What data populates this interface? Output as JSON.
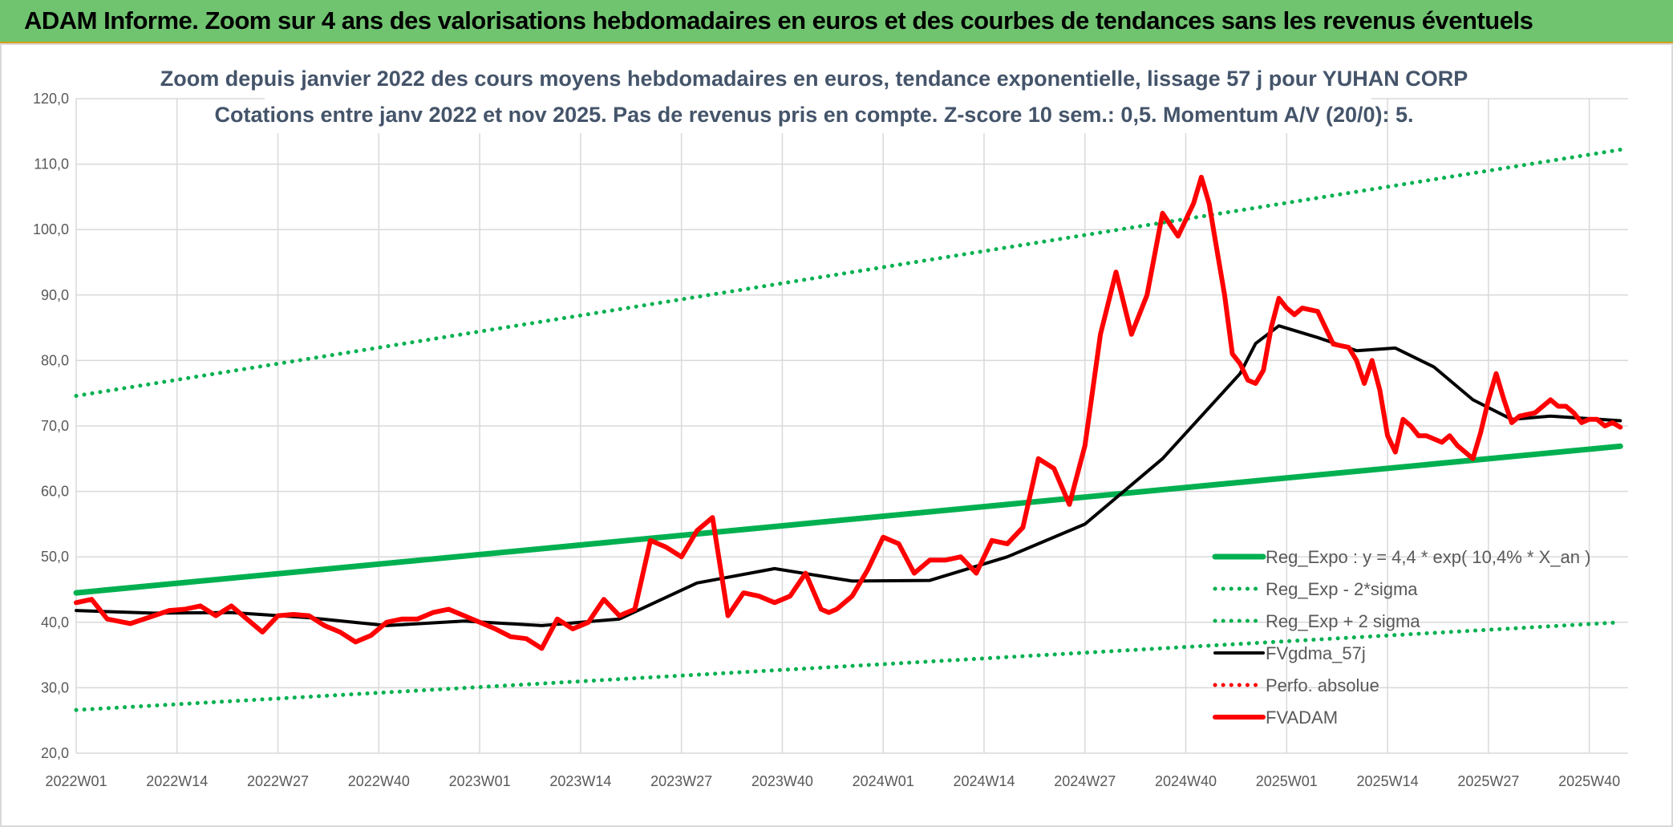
{
  "header": {
    "title": "ADAM Informe. Zoom sur 4 ans des valorisations hebdomadaires en euros et des courbes de tendances sans les revenus éventuels"
  },
  "chart_data": {
    "type": "line",
    "title": "Zoom depuis janvier 2022 des cours moyens hebdomadaires en euros, tendance exponentielle, lissage 57 j pour YUHAN CORP",
    "subtitle": "Cotations entre janv 2022 et nov 2025. Pas de revenus pris en compte. Z-score 10 sem.: 0,5. Momentum A/V (20/0): 5.",
    "x_tick_labels": [
      "2022W01",
      "2022W14",
      "2022W27",
      "2022W40",
      "2023W01",
      "2023W14",
      "2023W27",
      "2023W40",
      "2024W01",
      "2024W14",
      "2024W27",
      "2024W40",
      "2025W01",
      "2025W14",
      "2025W27",
      "2025W40"
    ],
    "y_tick_labels": [
      "20,0",
      "30,0",
      "40,0",
      "50,0",
      "60,0",
      "70,0",
      "80,0",
      "90,0",
      "100,0",
      "110,0",
      "120,0"
    ],
    "ylim": [
      20,
      120
    ],
    "week_count": 200,
    "grid": true,
    "legend_position": "bottom-right",
    "series": [
      {
        "name": "Reg_Expo : y = 4,4 * exp( 10,4% *  X_an )",
        "color": "#00b050",
        "style": "solid-thick",
        "x": [
          0,
          199
        ],
        "values": [
          44.5,
          66.9
        ]
      },
      {
        "name": "Reg_Exp - 2*sigma",
        "color": "#00b050",
        "style": "dotted",
        "x": [
          0,
          199
        ],
        "values": [
          26.6,
          40.0
        ]
      },
      {
        "name": "Reg_Exp + 2 sigma",
        "color": "#00b050",
        "style": "dotted",
        "x": [
          0,
          199
        ],
        "values": [
          74.6,
          112.2
        ]
      },
      {
        "name": "FVgdma_57j",
        "color": "#000000",
        "style": "solid",
        "x": [
          0,
          10,
          20,
          30,
          40,
          50,
          60,
          70,
          80,
          90,
          100,
          110,
          120,
          130,
          140,
          150,
          152,
          155,
          160,
          165,
          170,
          175,
          180,
          185,
          190,
          199
        ],
        "values": [
          41.8,
          41.4,
          41.5,
          40.7,
          39.5,
          40.2,
          39.5,
          40.5,
          46.0,
          48.2,
          46.3,
          46.4,
          50.0,
          55.0,
          65.0,
          78.0,
          82.6,
          85.3,
          83.5,
          81.5,
          81.9,
          79.0,
          74.0,
          71.0,
          71.5,
          70.8
        ]
      },
      {
        "name": "Perfo. absolue",
        "color": "#ff0000",
        "style": "dotted",
        "x": [],
        "values": []
      },
      {
        "name": "FVADAM",
        "color": "#ff0000",
        "style": "solid-thick",
        "x": [
          0,
          2,
          4,
          7,
          10,
          12,
          14,
          16,
          18,
          20,
          24,
          26,
          28,
          30,
          32,
          34,
          36,
          38,
          40,
          42,
          44,
          46,
          48,
          50,
          52,
          54,
          56,
          58,
          60,
          62,
          64,
          66,
          68,
          70,
          72,
          74,
          76,
          78,
          80,
          82,
          84,
          86,
          88,
          90,
          92,
          94,
          96,
          97,
          98,
          100,
          102,
          104,
          106,
          108,
          110,
          112,
          114,
          116,
          118,
          120,
          122,
          124,
          126,
          128,
          130,
          132,
          134,
          136,
          138,
          140,
          142,
          144,
          145,
          146,
          147,
          148,
          149,
          150,
          151,
          152,
          153,
          154,
          155,
          156,
          157,
          158,
          160,
          162,
          164,
          165,
          166,
          167,
          168,
          169,
          170,
          171,
          172,
          173,
          174,
          176,
          177,
          178,
          180,
          181,
          182,
          183,
          184,
          185,
          186,
          188,
          190,
          191,
          192,
          193,
          194,
          195,
          196,
          197,
          198,
          199
        ],
        "values": [
          43.0,
          43.5,
          40.5,
          39.8,
          41.0,
          41.8,
          42.0,
          42.5,
          41.0,
          42.5,
          38.5,
          41.0,
          41.2,
          41.0,
          39.5,
          38.5,
          37.0,
          38.0,
          40.0,
          40.5,
          40.5,
          41.5,
          42.0,
          41.0,
          40.0,
          39.0,
          37.8,
          37.5,
          36.0,
          40.5,
          39.0,
          40.0,
          43.5,
          41.0,
          42.0,
          52.5,
          51.5,
          50.0,
          54.0,
          56.0,
          41.0,
          44.5,
          44.0,
          43.0,
          44.0,
          47.5,
          42.0,
          41.5,
          42.0,
          44.0,
          48.0,
          53.0,
          52.0,
          47.5,
          49.5,
          49.5,
          50.0,
          47.5,
          52.5,
          52.0,
          54.5,
          65.0,
          63.5,
          58.0,
          67.0,
          84.0,
          93.5,
          84.0,
          90.0,
          102.5,
          99.0,
          104.0,
          108.0,
          104.0,
          97.0,
          90.0,
          81.0,
          79.5,
          77.0,
          76.5,
          78.5,
          85.0,
          89.5,
          88.0,
          87.0,
          88.0,
          87.5,
          82.5,
          82.0,
          80.0,
          76.5,
          80.0,
          75.5,
          68.5,
          66.0,
          71.0,
          70.0,
          68.5,
          68.5,
          67.5,
          68.5,
          67.0,
          65.0,
          69.0,
          74.0,
          78.0,
          74.0,
          70.5,
          71.5,
          72.0,
          74.0,
          73.0,
          73.0,
          72.0,
          70.5,
          71.0,
          71.0,
          70.0,
          70.5,
          69.8
        ]
      }
    ]
  }
}
